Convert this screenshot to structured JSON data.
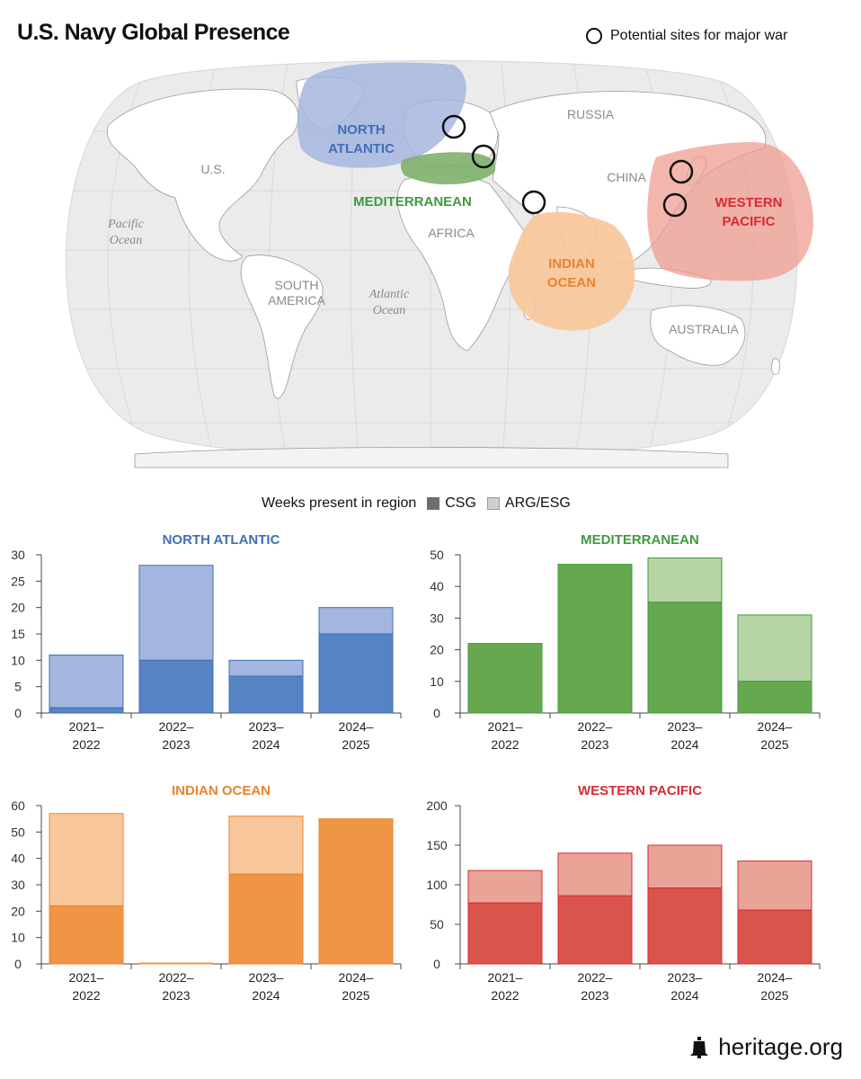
{
  "title": "U.S. Navy Global Presence",
  "map_legend": "Potential sites for major war",
  "map_labels": {
    "north_atlantic": [
      "NORTH",
      "ATLANTIC"
    ],
    "mediterranean": "MEDITERRANEAN",
    "indian_ocean": [
      "INDIAN",
      "OCEAN"
    ],
    "western_pacific": [
      "WESTERN",
      "PACIFIC"
    ],
    "russia": "RUSSIA",
    "us": "U.S.",
    "china": "CHINA",
    "africa": "AFRICA",
    "south_america": [
      "SOUTH",
      "AMERICA"
    ],
    "australia": "AUSTRALIA",
    "pacific_ocean": [
      "Pacific",
      "Ocean"
    ],
    "atlantic_ocean": [
      "Atlantic",
      "Ocean"
    ]
  },
  "colors": {
    "north_atlantic": "#3f6fb6",
    "north_atlantic_csg": "#5683c4",
    "north_atlantic_arg": "#a4b6df",
    "mediterranean": "#3f9a3f",
    "mediterranean_csg": "#66a84e",
    "mediterranean_arg": "#b6d4a4",
    "indian_ocean": "#e9832e",
    "indian_ocean_csg": "#f09446",
    "indian_ocean_arg": "#f8c79b",
    "western_pacific": "#d62c34",
    "western_pacific_csg": "#d9544a",
    "western_pacific_arg": "#e9a497"
  },
  "weeks_legend": {
    "label": "Weeks present in region",
    "csg": "CSG",
    "arg": "ARG/ESG"
  },
  "footer": "heritage.org",
  "chart_data": [
    {
      "type": "bar",
      "stacked": true,
      "title": "NORTH ATLANTIC",
      "categories": [
        "2021–\n2022",
        "2022–\n2023",
        "2023–\n2024",
        "2024–\n2025"
      ],
      "series": [
        {
          "name": "CSG",
          "values": [
            1,
            10,
            7,
            15
          ]
        },
        {
          "name": "ARG/ESG",
          "values": [
            10,
            18,
            3,
            5
          ]
        }
      ],
      "ylim": [
        0,
        30
      ],
      "yticks": [
        0,
        5,
        10,
        15,
        20,
        25,
        30
      ]
    },
    {
      "type": "bar",
      "stacked": true,
      "title": "MEDITERRANEAN",
      "categories": [
        "2021–\n2022",
        "2022–\n2023",
        "2023–\n2024",
        "2024–\n2025"
      ],
      "series": [
        {
          "name": "CSG",
          "values": [
            22,
            47,
            35,
            10
          ]
        },
        {
          "name": "ARG/ESG",
          "values": [
            0,
            0,
            14,
            21
          ]
        }
      ],
      "ylim": [
        0,
        50
      ],
      "yticks": [
        0,
        10,
        20,
        30,
        40,
        50
      ]
    },
    {
      "type": "bar",
      "stacked": true,
      "title": "INDIAN OCEAN",
      "categories": [
        "2021–\n2022",
        "2022–\n2023",
        "2023–\n2024",
        "2024–\n2025"
      ],
      "series": [
        {
          "name": "CSG",
          "values": [
            22,
            0,
            34,
            55
          ]
        },
        {
          "name": "ARG/ESG",
          "values": [
            35,
            0,
            22,
            0
          ]
        }
      ],
      "ylim": [
        0,
        60
      ],
      "yticks": [
        0,
        10,
        20,
        30,
        40,
        50,
        60
      ]
    },
    {
      "type": "bar",
      "stacked": true,
      "title": "WESTERN PACIFIC",
      "categories": [
        "2021–\n2022",
        "2022–\n2023",
        "2023–\n2024",
        "2024–\n2025"
      ],
      "series": [
        {
          "name": "CSG",
          "values": [
            77,
            86,
            96,
            68
          ]
        },
        {
          "name": "ARG/ESG",
          "values": [
            41,
            54,
            54,
            62
          ]
        }
      ],
      "ylim": [
        0,
        200
      ],
      "yticks": [
        0,
        50,
        100,
        150,
        200
      ]
    }
  ]
}
